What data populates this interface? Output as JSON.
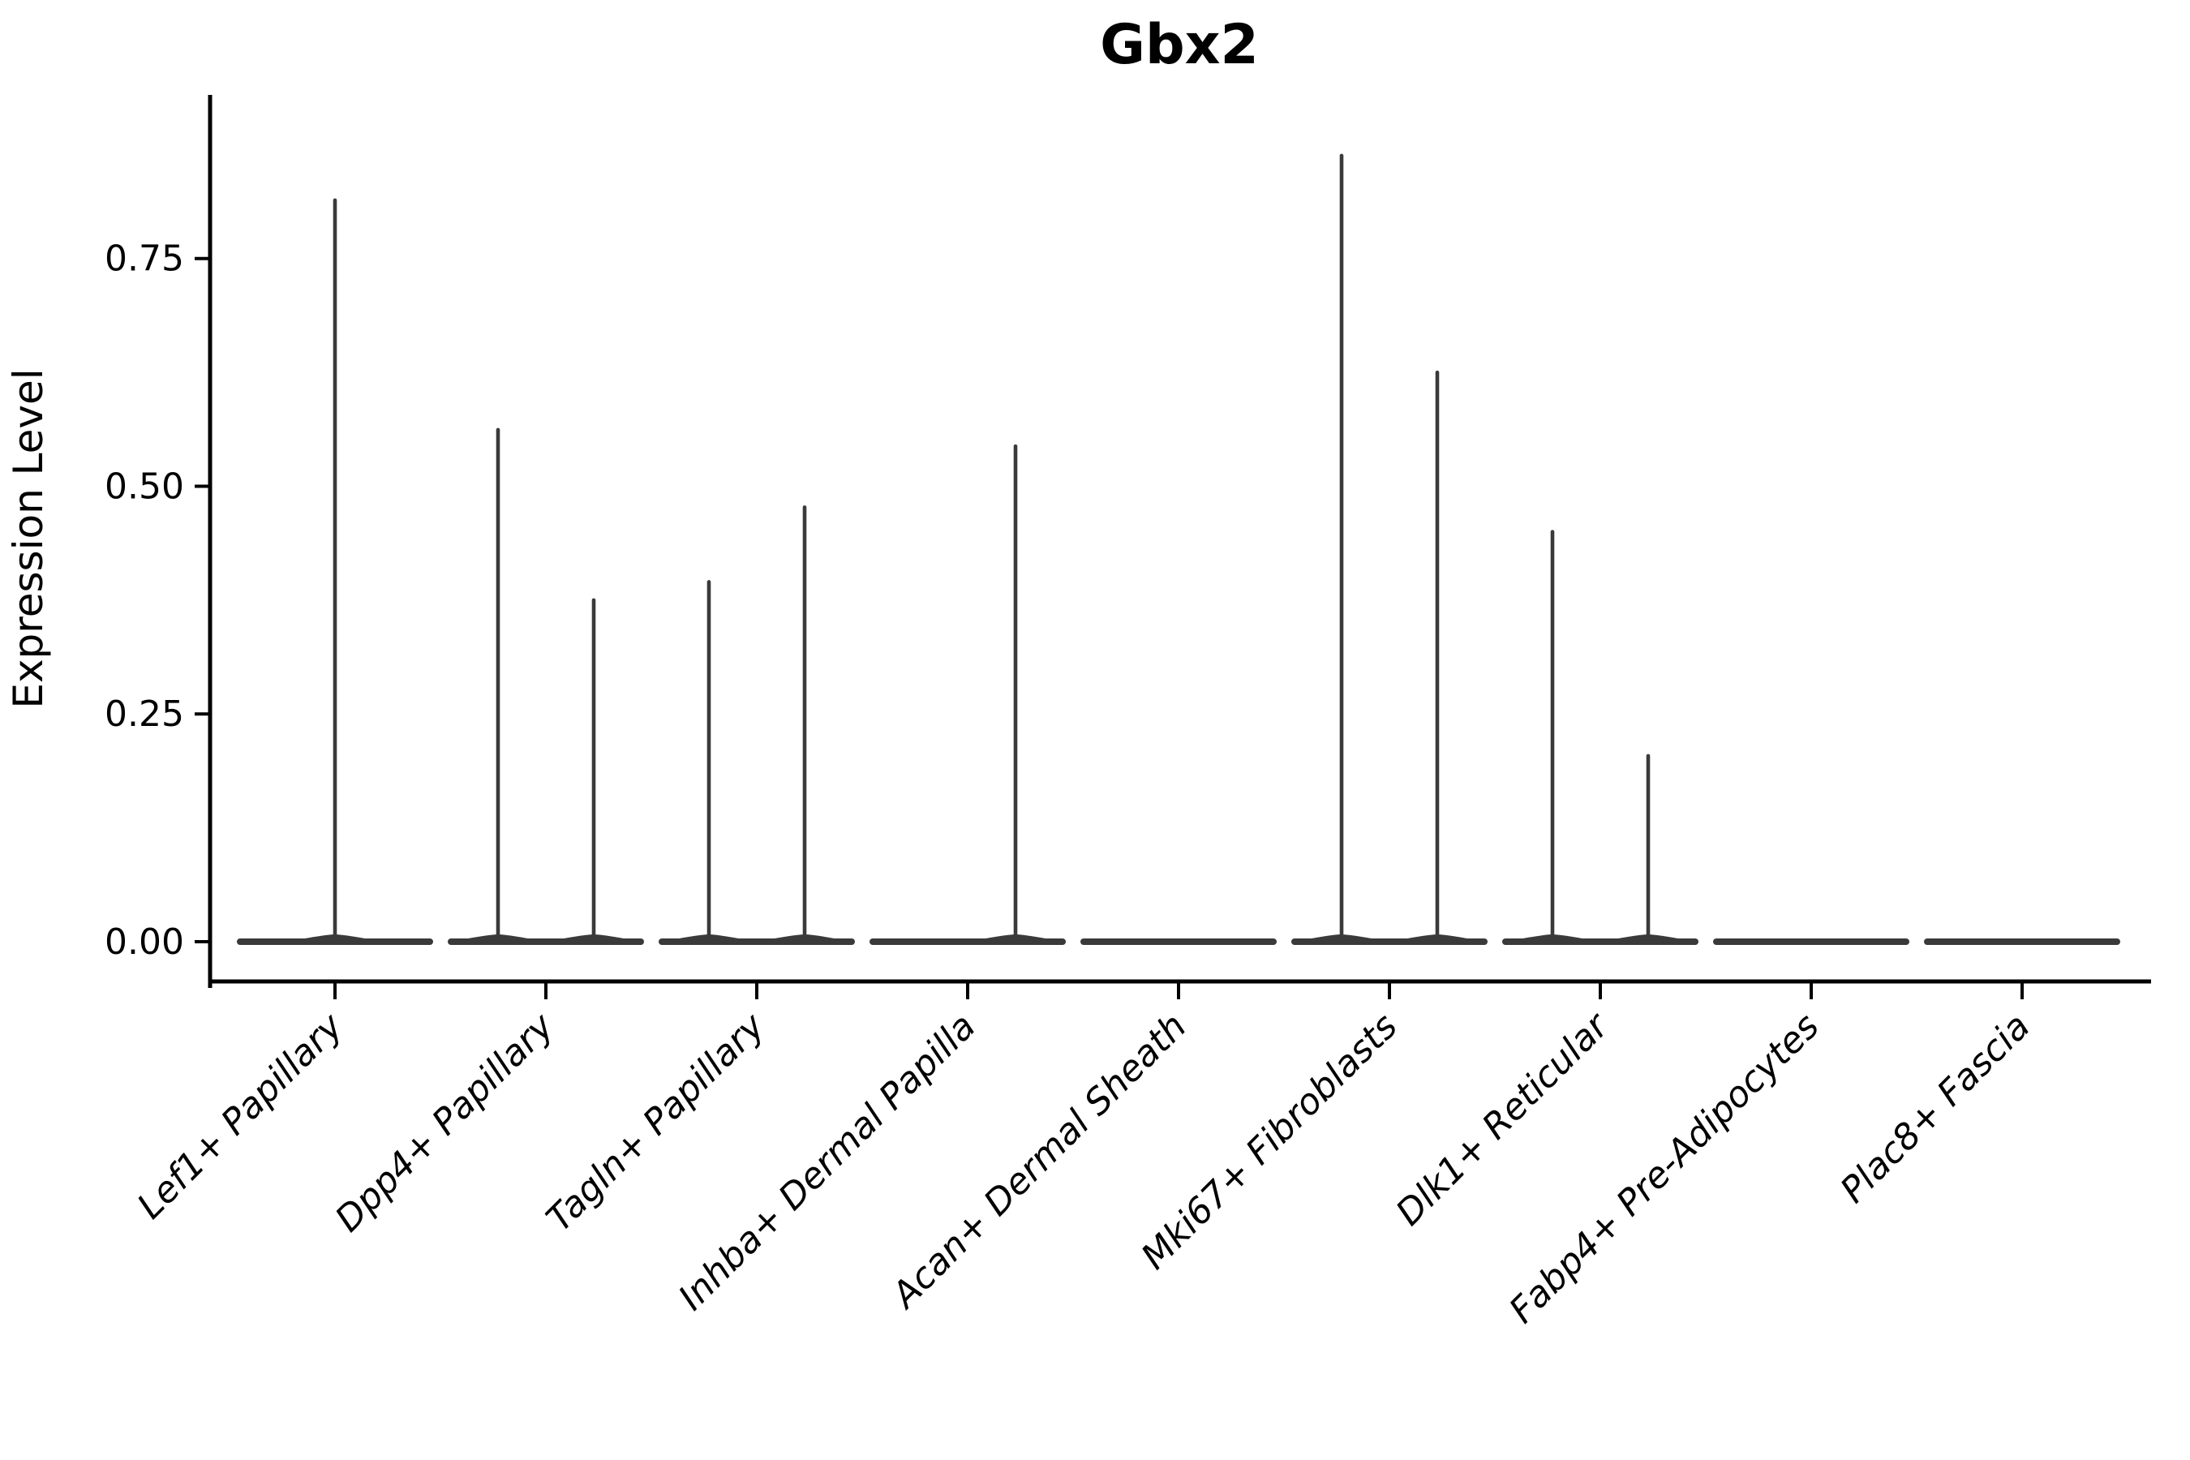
{
  "figure": {
    "background": "#ffffff"
  },
  "chart_data": {
    "type": "violin",
    "title": "Gbx2",
    "xlabel": "",
    "ylabel": "Expression Level",
    "ylim": [
      -0.044,
      0.93
    ],
    "grid": false,
    "legend": null,
    "y_ticks": [
      {
        "label": "0.00",
        "value": 0.0
      },
      {
        "label": "0.25",
        "value": 0.25
      },
      {
        "label": "0.50",
        "value": 0.5
      },
      {
        "label": "0.75",
        "value": 0.75
      }
    ],
    "categories": [
      "Lef1+ Papillary",
      "Dpp4+ Papillary",
      "Tagln+ Papillary",
      "Inhba+ Dermal Papilla",
      "Acan+ Dermal Sheath",
      "Mki67+ Fibroblasts",
      "Dlk1+ Reticular",
      "Fabp4+ Pre-Adipocytes",
      "Plac8+ Fascia"
    ],
    "series": [
      {
        "category": "Lef1+ Papillary",
        "base_expression": 0,
        "violins": [
          {
            "slot": "center",
            "max_expression": 0.816
          }
        ]
      },
      {
        "category": "Dpp4+ Papillary",
        "base_expression": 0,
        "violins": [
          {
            "slot": "left",
            "max_expression": 0.564
          },
          {
            "slot": "right",
            "max_expression": 0.377
          }
        ]
      },
      {
        "category": "Tagln+ Papillary",
        "base_expression": 0,
        "violins": [
          {
            "slot": "left",
            "max_expression": 0.397
          },
          {
            "slot": "right",
            "max_expression": 0.479
          }
        ]
      },
      {
        "category": "Inhba+ Dermal Papilla",
        "base_expression": 0,
        "violins": [
          {
            "slot": "right",
            "max_expression": 0.546
          }
        ]
      },
      {
        "category": "Acan+ Dermal Sheath",
        "base_expression": 0,
        "violins": []
      },
      {
        "category": "Mki67+ Fibroblasts",
        "base_expression": 0,
        "violins": [
          {
            "slot": "left",
            "max_expression": 0.865
          },
          {
            "slot": "right",
            "max_expression": 0.627
          }
        ]
      },
      {
        "category": "Dlk1+ Reticular",
        "base_expression": 0,
        "violins": [
          {
            "slot": "left",
            "max_expression": 0.452
          },
          {
            "slot": "right",
            "max_expression": 0.206
          }
        ]
      },
      {
        "category": "Fabp4+ Pre-Adipocytes",
        "base_expression": 0,
        "violins": []
      },
      {
        "category": "Plac8+ Fascia",
        "base_expression": 0,
        "violins": []
      }
    ],
    "style": {
      "violin_color": "#3a3a3a",
      "axis_color": "#000000",
      "background": "#ffffff",
      "category_label_style": "italic",
      "category_label_rotation_deg": 45,
      "legend_position": "none"
    }
  }
}
